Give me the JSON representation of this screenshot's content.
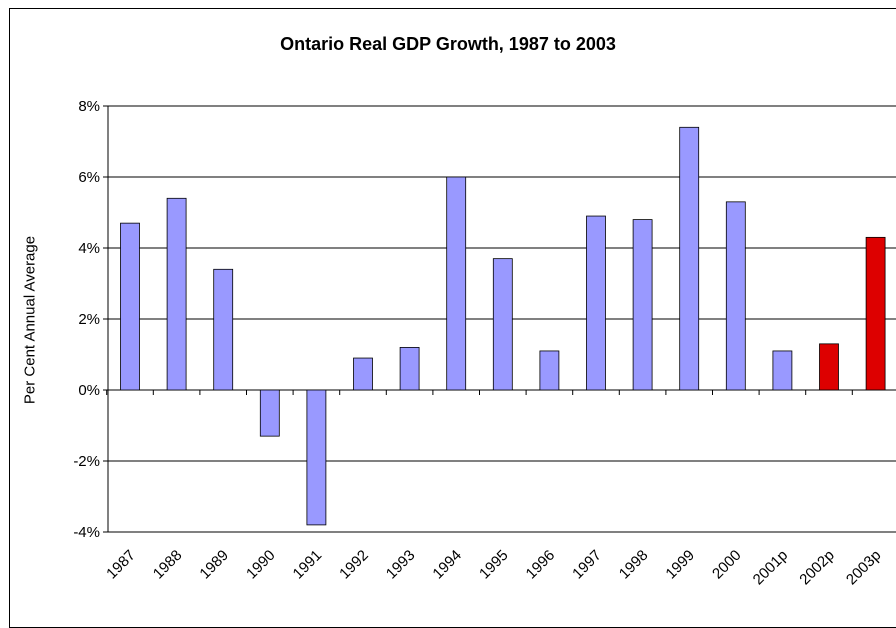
{
  "chart_data": {
    "type": "bar",
    "title": "Ontario Real GDP Growth, 1987 to 2003",
    "xlabel": "",
    "ylabel": "Per Cent Annual Average",
    "categories": [
      "1987",
      "1988",
      "1989",
      "1990",
      "1991",
      "1992",
      "1993",
      "1994",
      "1995",
      "1996",
      "1997",
      "1998",
      "1999",
      "2000",
      "2001p",
      "2002p",
      "2003p"
    ],
    "values": [
      4.7,
      5.4,
      3.4,
      -1.3,
      -3.8,
      0.9,
      1.2,
      6.0,
      3.7,
      1.1,
      4.9,
      4.8,
      7.4,
      5.3,
      1.1,
      1.3,
      4.3
    ],
    "bar_colors": [
      "#9999ff",
      "#9999ff",
      "#9999ff",
      "#9999ff",
      "#9999ff",
      "#9999ff",
      "#9999ff",
      "#9999ff",
      "#9999ff",
      "#9999ff",
      "#9999ff",
      "#9999ff",
      "#9999ff",
      "#9999ff",
      "#9999ff",
      "#dd0000",
      "#dd0000"
    ],
    "ylim": [
      -4,
      8
    ],
    "yticks": [
      -4,
      -2,
      0,
      2,
      4,
      6,
      8
    ],
    "ytick_labels": [
      "-4%",
      "-2%",
      "0%",
      "2%",
      "4%",
      "6%",
      "8%"
    ],
    "grid": true,
    "legend": "none"
  }
}
